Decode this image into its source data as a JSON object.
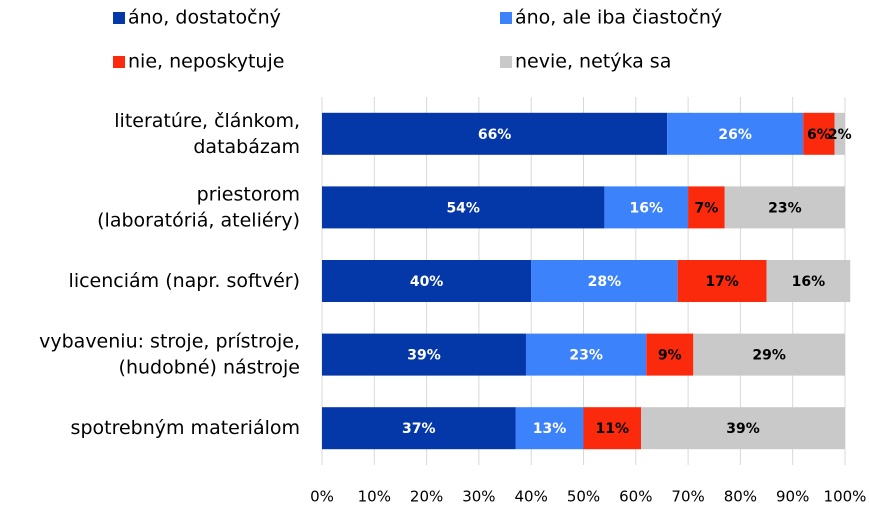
{
  "chart_data": {
    "type": "stacked_bar_horizontal",
    "categories": [
      [
        "literatúre, článkom,",
        "databázam"
      ],
      [
        "priestorom",
        "(laboratóriá, ateliéry)"
      ],
      [
        "licenciám (napr. softvér)"
      ],
      [
        "vybaveniu: stroje, prístroje,",
        "(hudobné) nástroje"
      ],
      [
        "spotrebným materiálom"
      ]
    ],
    "series": [
      {
        "name": "áno, dostatočný",
        "color": "#0437a8",
        "label_color": "#ffffff",
        "values": [
          66,
          54,
          40,
          39,
          37
        ],
        "value_labels": [
          "66%",
          "54%",
          "40%",
          "39%",
          "37%"
        ]
      },
      {
        "name": "áno, ale iba čiastočný",
        "color": "#3b82fb",
        "label_color": "#ffffff",
        "values": [
          26,
          16,
          28,
          23,
          13
        ],
        "value_labels": [
          "26%",
          "16%",
          "28%",
          "23%",
          "13%"
        ]
      },
      {
        "name": "nie, neposkytuje",
        "color": "#fb2a0c",
        "label_color": "#000000",
        "values": [
          6,
          7,
          17,
          9,
          11
        ],
        "value_labels": [
          "6%",
          "7%",
          "17%",
          "9%",
          "11%"
        ]
      },
      {
        "name": "nevie, netýka sa",
        "color": "#c9c9c9",
        "label_color": "#000000",
        "values": [
          2,
          23,
          16,
          29,
          39
        ],
        "value_labels": [
          "2%",
          "23%",
          "16%",
          "29%",
          "39%"
        ]
      }
    ],
    "xlim": [
      0,
      100
    ],
    "xticks": [
      {
        "value": 0,
        "label": "0%"
      },
      {
        "value": 10,
        "label": "10%"
      },
      {
        "value": 20,
        "label": "20%"
      },
      {
        "value": 30,
        "label": "30%"
      },
      {
        "value": 40,
        "label": "40%"
      },
      {
        "value": 50,
        "label": "50%"
      },
      {
        "value": 60,
        "label": "60%"
      },
      {
        "value": 70,
        "label": "70%"
      },
      {
        "value": 80,
        "label": "80%"
      },
      {
        "value": 90,
        "label": "90%"
      },
      {
        "value": 100,
        "label": "100%"
      }
    ],
    "grid": true,
    "legend": "top"
  }
}
